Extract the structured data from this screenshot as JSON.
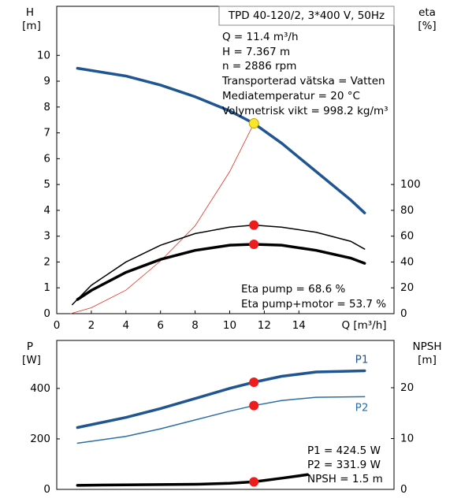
{
  "chart_data": [
    {
      "type": "line",
      "title": "TPD 40-120/2, 3*400 V, 50Hz",
      "ylabel": "H",
      "yunit": "[m]",
      "y2label": "eta",
      "y2unit": "[%]",
      "xlabel": "Q [m³/h]",
      "xlim": [
        0,
        19.5
      ],
      "xticks": [
        0,
        2,
        4,
        6,
        8,
        10,
        12,
        14
      ],
      "ylim": [
        0,
        11.9
      ],
      "yticks": [
        0,
        1,
        2,
        3,
        4,
        5,
        6,
        7,
        8,
        9,
        10
      ],
      "y2lim": [
        0,
        238
      ],
      "y2ticks": [
        0,
        20,
        40,
        60,
        80,
        100
      ],
      "series": [
        {
          "color": "#1f5591",
          "line_width": 3.5,
          "x": [
            1.2,
            4,
            6,
            8,
            10,
            11.4,
            13,
            15,
            17,
            17.8
          ],
          "values": [
            9.5,
            9.2,
            8.85,
            8.4,
            7.85,
            7.367,
            6.6,
            5.5,
            4.4,
            3.9
          ]
        },
        {
          "color": "#e03020",
          "line_width": 0.8,
          "x": [
            0.8,
            2,
            4,
            6,
            8,
            10,
            11.4
          ],
          "values": [
            0,
            0.23,
            0.91,
            2.04,
            3.4,
            5.5,
            7.367
          ]
        },
        {
          "color": "#000000",
          "line_width": 1.5,
          "axis": "y2",
          "x": [
            0.9,
            2,
            4,
            6,
            8,
            10,
            11.4,
            13,
            15,
            17,
            17.8
          ],
          "values": [
            7,
            22,
            40,
            53,
            62,
            67,
            68.6,
            67,
            63,
            56,
            50
          ]
        },
        {
          "color": "#000000",
          "line_width": 3.5,
          "axis": "y2",
          "x": [
            1.2,
            2,
            4,
            6,
            8,
            10,
            11.4,
            13,
            15,
            17,
            17.8
          ],
          "values": [
            11,
            18,
            32,
            42,
            49,
            53,
            53.7,
            53,
            49,
            43,
            39
          ]
        }
      ],
      "points": [
        {
          "x": 11.4,
          "y": 7.367,
          "color": "#f5e82a"
        },
        {
          "x": 11.4,
          "y": 68.6,
          "color": "#ee1c1c",
          "axis": "y2"
        },
        {
          "x": 11.4,
          "y": 53.7,
          "color": "#ee1c1c",
          "axis": "y2"
        }
      ],
      "annotations": [
        "Q = 11.4 m³/h",
        "H = 7.367 m",
        "n = 2886 rpm",
        "Transporterad vätska = Vatten",
        "Mediatemperatur = 20 °C",
        "Volymetrisk vikt = 998.2 kg/m³",
        "Eta pump = 68.6 %",
        "Eta pump+motor = 53.7 %"
      ]
    },
    {
      "type": "line",
      "ylabel": "P",
      "yunit": "[W]",
      "y2label": "NPSH",
      "y2unit": "[m]",
      "xlim": [
        0,
        19.5
      ],
      "ylim": [
        0,
        590
      ],
      "yticks": [
        0,
        200,
        400
      ],
      "y2lim": [
        0,
        29.3
      ],
      "y2ticks": [
        0,
        10,
        20
      ],
      "series": [
        {
          "name": "P1",
          "color": "#1f5591",
          "line_width": 3.5,
          "x": [
            1.2,
            4,
            6,
            8,
            10,
            11.4,
            13,
            15,
            17.8
          ],
          "values": [
            245,
            285,
            320,
            360,
            400,
            424.5,
            448,
            465,
            470
          ]
        },
        {
          "name": "P2",
          "color": "#2a6ea6",
          "line_width": 1.5,
          "x": [
            1.2,
            4,
            6,
            8,
            10,
            11.4,
            13,
            15,
            17.8
          ],
          "values": [
            183,
            210,
            240,
            275,
            310,
            331.9,
            352,
            365,
            367
          ]
        },
        {
          "color": "#000000",
          "line_width": 3.5,
          "axis": "y2",
          "x": [
            1.2,
            4,
            8,
            10,
            11.4,
            13,
            14.5
          ],
          "values": [
            0.8,
            0.9,
            1.0,
            1.2,
            1.5,
            2.2,
            2.9
          ]
        }
      ],
      "points": [
        {
          "x": 11.4,
          "y": 424.5,
          "color": "#ee1c1c"
        },
        {
          "x": 11.4,
          "y": 331.9,
          "color": "#ee1c1c"
        },
        {
          "x": 11.4,
          "y": 1.5,
          "color": "#ee1c1c",
          "axis": "y2"
        }
      ],
      "annotations": [
        "P1 = 424.5 W",
        "P2 = 331.9 W",
        "NPSH = 1.5 m"
      ]
    }
  ]
}
